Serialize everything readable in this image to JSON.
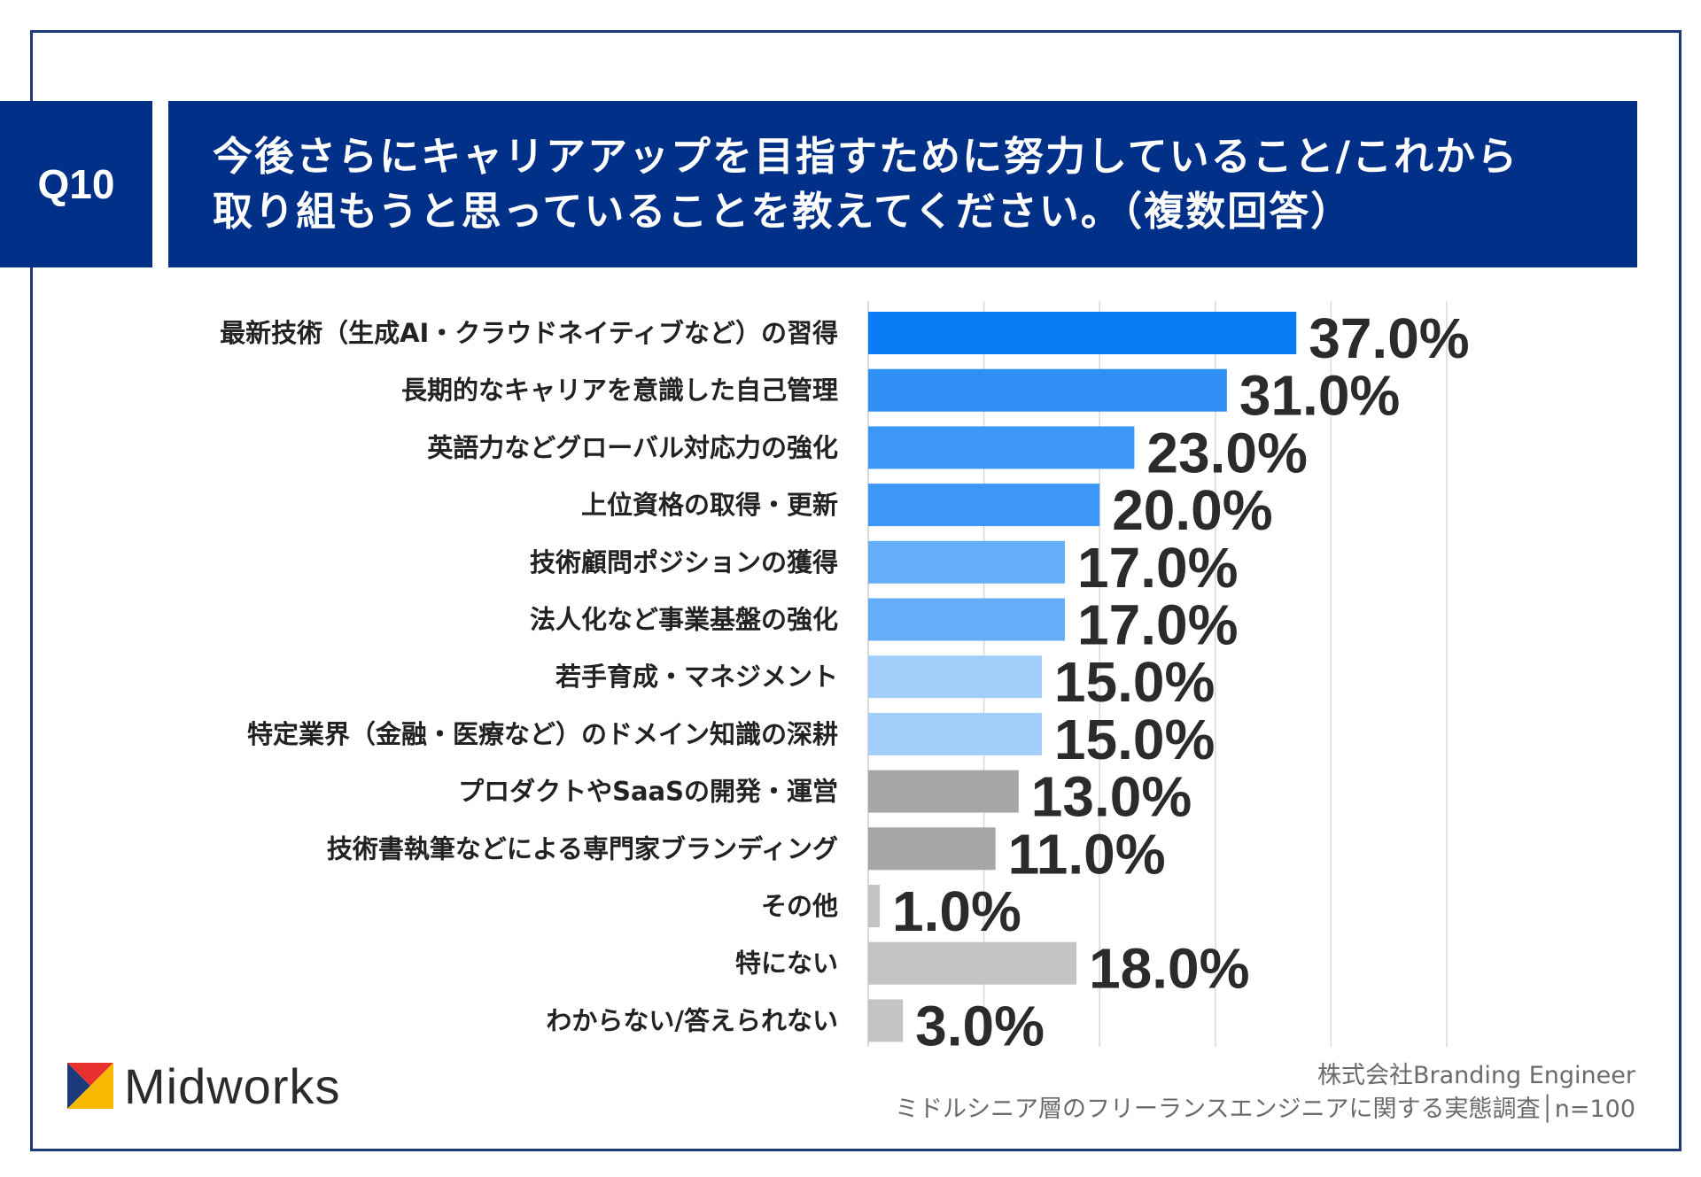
{
  "header": {
    "question_no": "Q10",
    "title_lines": [
      "今後さらにキャリアアップを目指すために努力していること/これから",
      "取り組もうと思っていることを教えてください。（複数回答）"
    ]
  },
  "chart_data": {
    "type": "bar",
    "orientation": "horizontal",
    "title": "",
    "xlabel": "",
    "ylabel": "",
    "xlim": [
      0,
      50
    ],
    "grid": true,
    "categories": [
      "最新技術（生成AI・クラウドネイティブなど）の習得",
      "長期的なキャリアを意識した自己管理",
      "英語力などグローバル対応力の強化",
      "上位資格の取得・更新",
      "技術顧問ポジションの獲得",
      "法人化など事業基盤の強化",
      "若手育成・マネジメント",
      "特定業界（金融・医療など）のドメイン知識の深耕",
      "プロダクトやSaaSの開発・運営",
      "技術書執筆などによる専門家ブランディング",
      "その他",
      "特にない",
      "わからない/答えられない"
    ],
    "values": [
      37.0,
      31.0,
      23.0,
      20.0,
      17.0,
      17.0,
      15.0,
      15.0,
      13.0,
      11.0,
      1.0,
      18.0,
      3.0
    ],
    "value_labels": [
      "37.0%",
      "31.0%",
      "23.0%",
      "20.0%",
      "17.0%",
      "17.0%",
      "15.0%",
      "15.0%",
      "13.0%",
      "11.0%",
      "1.0%",
      "18.0%",
      "3.0%"
    ],
    "bar_colors": [
      "#0a7cf5",
      "#2f8ff5",
      "#3c97f6",
      "#3c97f6",
      "#64aef8",
      "#64aef8",
      "#a3cefb",
      "#a3cefb",
      "#a6a6a6",
      "#a6a6a6",
      "#c4c4c4",
      "#c4c4c4",
      "#c4c4c4"
    ]
  },
  "logo": {
    "text": "Midworks",
    "icon": "midworks-logo-icon"
  },
  "footer": {
    "line1": "株式会社Branding Engineer",
    "line2": "ミドルシニア層のフリーランスエンジニアに関する実態調査│n=100"
  },
  "colors": {
    "header_bg": "#003087",
    "frame": "#1c3a7a",
    "grid": "#d9d9d9"
  }
}
